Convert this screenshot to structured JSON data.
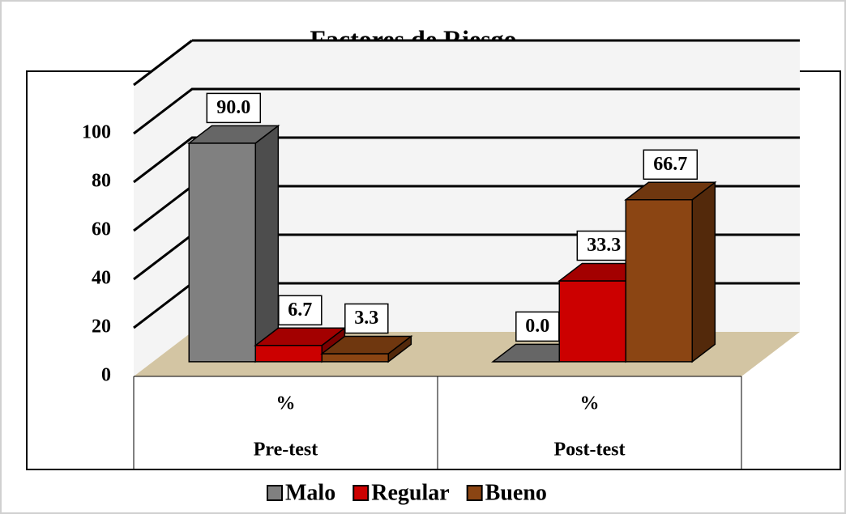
{
  "chart_data": {
    "type": "bar3d",
    "title": "Factores de Riesgo",
    "categories": [
      "Pre-test",
      "Post-test"
    ],
    "subcategories": [
      "%",
      "%"
    ],
    "series": [
      {
        "name": "Malo",
        "color": "#808080",
        "values": [
          90.0,
          0.0
        ],
        "value_labels": [
          "90.0",
          "0.0"
        ]
      },
      {
        "name": "Regular",
        "color": "#cc0000",
        "values": [
          6.7,
          33.3
        ],
        "value_labels": [
          "6.7",
          "33.3"
        ]
      },
      {
        "name": "Bueno",
        "color": "#8b4513",
        "values": [
          3.3,
          66.7
        ],
        "value_labels": [
          "3.3",
          "66.7"
        ]
      }
    ],
    "ylim": [
      0,
      120
    ],
    "yticks": [
      0,
      20,
      40,
      60,
      80,
      100
    ],
    "grid": true,
    "legend": "bottom"
  }
}
